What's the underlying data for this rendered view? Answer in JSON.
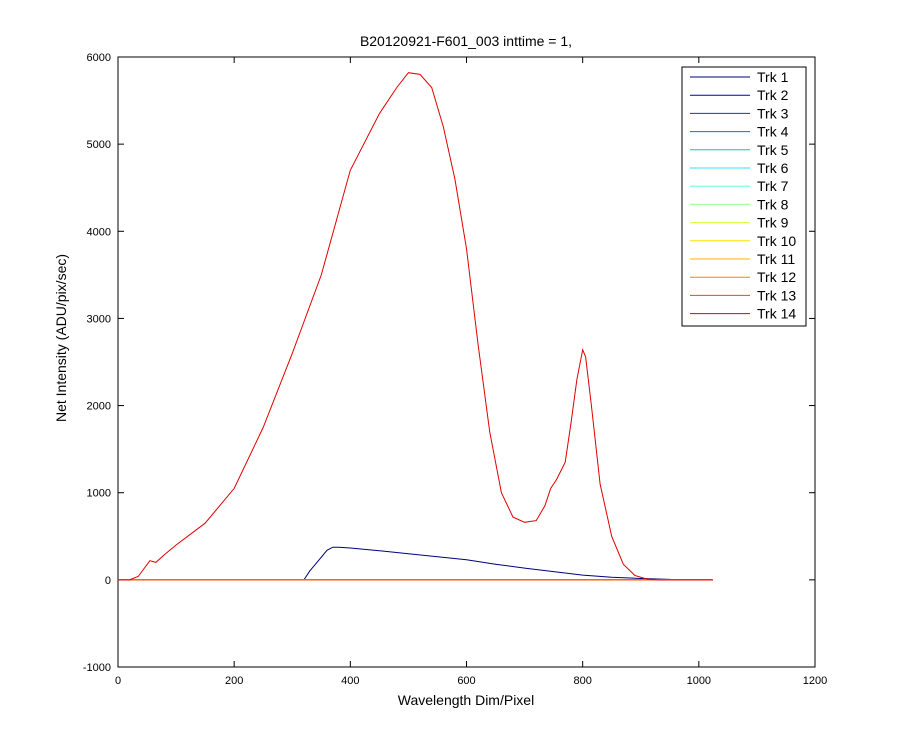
{
  "chart_data": {
    "type": "line",
    "title": "B20120921-F601_003 inttime = 1,",
    "xlabel": "Wavelength Dim/Pixel",
    "ylabel": "Net Intensity (ADU/pix/sec)",
    "xlim": [
      0,
      1200
    ],
    "ylim": [
      -1000,
      6000
    ],
    "xticks": [
      0,
      200,
      400,
      600,
      800,
      1000,
      1200
    ],
    "yticks": [
      -1000,
      0,
      1000,
      2000,
      3000,
      4000,
      5000,
      6000
    ],
    "grid": false,
    "legend_position": "top-right",
    "series": [
      {
        "name": "Trk 1",
        "color": "#00007f",
        "x": [
          0,
          320,
          330,
          345,
          360,
          370,
          380,
          400,
          450,
          500,
          550,
          600,
          650,
          700,
          750,
          800,
          850,
          900,
          950,
          960
        ],
        "y": [
          0,
          0,
          100,
          220,
          340,
          375,
          375,
          365,
          335,
          300,
          265,
          230,
          180,
          135,
          95,
          55,
          30,
          15,
          5,
          0
        ]
      },
      {
        "name": "Trk 2",
        "color": "#0000b0",
        "x": [
          0,
          1024
        ],
        "y": [
          0,
          0
        ]
      },
      {
        "name": "Trk 3",
        "color": "#0040c0",
        "x": [
          0,
          1024
        ],
        "y": [
          0,
          0
        ]
      },
      {
        "name": "Trk 4",
        "color": "#0080b0",
        "x": [
          0,
          1024
        ],
        "y": [
          0,
          0
        ]
      },
      {
        "name": "Trk 5",
        "color": "#00c0e0",
        "x": [
          0,
          1024
        ],
        "y": [
          0,
          0
        ]
      },
      {
        "name": "Trk 6",
        "color": "#30e0ff",
        "x": [
          0,
          1024
        ],
        "y": [
          0,
          0
        ]
      },
      {
        "name": "Trk 7",
        "color": "#60ffd0",
        "x": [
          0,
          1024
        ],
        "y": [
          0,
          0
        ]
      },
      {
        "name": "Trk 8",
        "color": "#90ff90",
        "x": [
          0,
          1024
        ],
        "y": [
          0,
          0
        ]
      },
      {
        "name": "Trk 9",
        "color": "#d0ff40",
        "x": [
          0,
          1024
        ],
        "y": [
          0,
          0
        ]
      },
      {
        "name": "Trk 10",
        "color": "#ffe000",
        "x": [
          0,
          1024
        ],
        "y": [
          0,
          0
        ]
      },
      {
        "name": "Trk 11",
        "color": "#ffb000",
        "x": [
          0,
          1024
        ],
        "y": [
          0,
          0
        ]
      },
      {
        "name": "Trk 12",
        "color": "#ff8000",
        "x": [
          0,
          1024
        ],
        "y": [
          0,
          0
        ]
      },
      {
        "name": "Trk 13",
        "color": "#ff4000",
        "x": [
          0,
          1024
        ],
        "y": [
          0,
          0
        ]
      },
      {
        "name": "Trk 14",
        "color": "#e00000",
        "x": [
          0,
          20,
          35,
          45,
          55,
          65,
          80,
          100,
          150,
          200,
          250,
          300,
          350,
          400,
          450,
          480,
          500,
          520,
          540,
          560,
          580,
          600,
          620,
          640,
          660,
          680,
          700,
          720,
          735,
          745,
          755,
          770,
          780,
          790,
          800,
          805,
          815,
          830,
          850,
          870,
          890,
          910,
          930,
          1024
        ],
        "y": [
          0,
          0,
          40,
          130,
          220,
          200,
          290,
          400,
          650,
          1050,
          1750,
          2600,
          3500,
          4700,
          5350,
          5650,
          5820,
          5800,
          5650,
          5200,
          4600,
          3800,
          2700,
          1700,
          1000,
          720,
          660,
          680,
          850,
          1050,
          1150,
          1350,
          1800,
          2300,
          2640,
          2560,
          2000,
          1100,
          500,
          180,
          50,
          10,
          0,
          0
        ]
      }
    ]
  }
}
